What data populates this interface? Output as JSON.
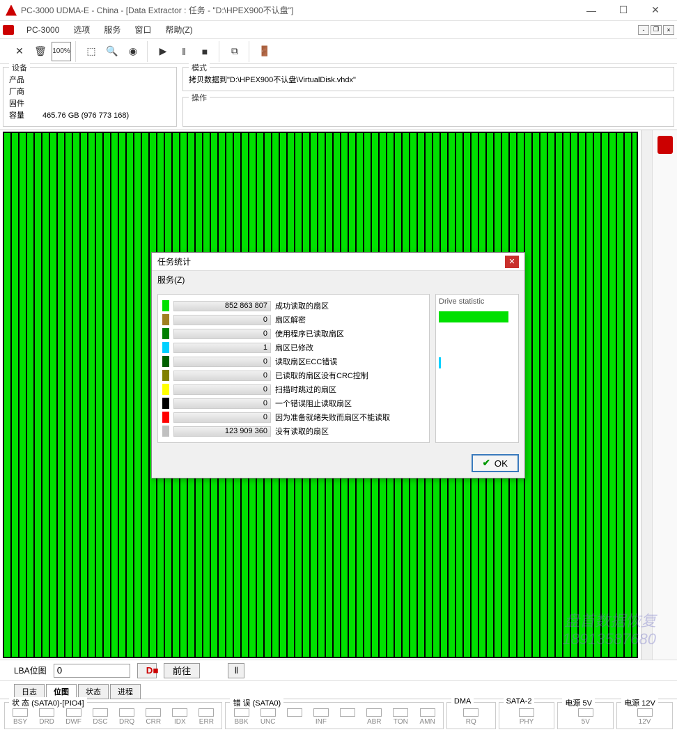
{
  "titlebar": {
    "title": "PC-3000 UDMA-E - China - [Data Extractor : 任务 - \"D:\\HPEX900不认盘\"]"
  },
  "menubar": {
    "app": "PC-3000",
    "items": [
      "选项",
      "服务",
      "窗口",
      "帮助(Z)"
    ]
  },
  "info": {
    "device_legend": "设备",
    "device": {
      "product": "产品",
      "vendor": "厂商",
      "firmware": "固件",
      "capacity_label": "容量",
      "capacity_value": "465.76 GB (976 773 168)"
    },
    "mode_legend": "模式",
    "mode_value": "拷贝数据到\"D:\\HPEX900不认盘\\VirtualDisk.vhdx\"",
    "operation_legend": "操作"
  },
  "lba": {
    "label": "LBA位图",
    "value": "0",
    "goto": "前往"
  },
  "tabs": [
    "日志",
    "位图",
    "状态",
    "进程"
  ],
  "tabs_active": 1,
  "footer": {
    "status_legend": "状 态 (SATA0)-[PIO4]",
    "status_leds": [
      "BSY",
      "DRD",
      "DWF",
      "DSC",
      "DRQ",
      "CRR",
      "IDX",
      "ERR"
    ],
    "error_legend": "错 误 (SATA0)",
    "error_leds": [
      "BBK",
      "UNC",
      "",
      "INF",
      "",
      "ABR",
      "TON",
      "AMN"
    ],
    "dma_legend": "DMA",
    "dma_led": "RQ",
    "sata2_legend": "SATA-2",
    "sata2_led": "PHY",
    "power5_legend": "电源 5V",
    "power5_led": "5V",
    "power12_legend": "电源 12V",
    "power12_led": "12V"
  },
  "modal": {
    "title": "任务统计",
    "menu": "服务(Z)",
    "drive_legend": "Drive statistic",
    "stats": [
      {
        "color": "#00e000",
        "value": "852 863 807",
        "label": "成功读取的扇区"
      },
      {
        "color": "#a08020",
        "value": "0",
        "label": "扇区解密"
      },
      {
        "color": "#008000",
        "value": "0",
        "label": "使用程序已读取扇区"
      },
      {
        "color": "#00d0ff",
        "value": "1",
        "label": "扇区已修改"
      },
      {
        "color": "#006000",
        "value": "0",
        "label": "读取扇区ECC错误"
      },
      {
        "color": "#808000",
        "value": "0",
        "label": "已读取的扇区没有CRC控制"
      },
      {
        "color": "#ffff00",
        "value": "0",
        "label": "扫描时跳过的扇区"
      },
      {
        "color": "#000000",
        "value": "0",
        "label": "一个错误阻止读取扇区"
      },
      {
        "color": "#ff0000",
        "value": "0",
        "label": "因为准备就绪失败而扇区不能读取"
      },
      {
        "color": "#c0c0c0",
        "value": "123 909 360",
        "label": "没有读取的扇区"
      }
    ],
    "ok": "OK"
  },
  "watermark": {
    "line1": "盘首数据恢复",
    "line2": "18913587680"
  }
}
